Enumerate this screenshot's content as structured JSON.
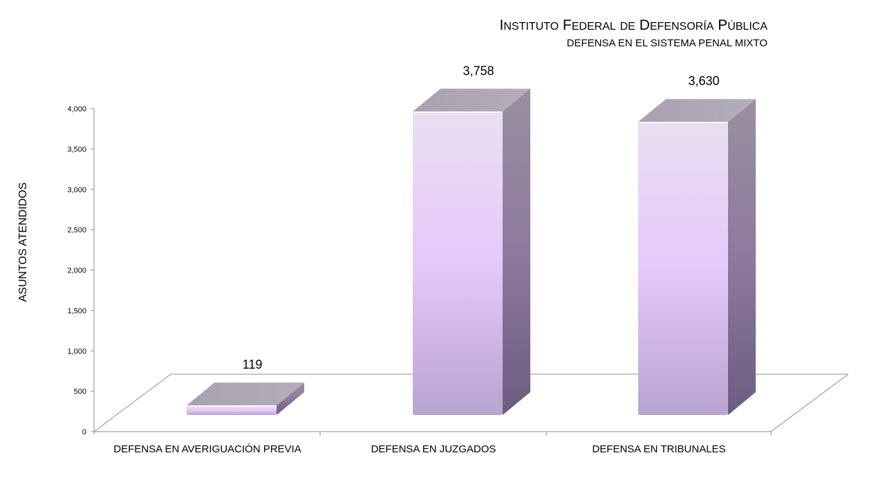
{
  "chart_data": {
    "type": "bar",
    "title": "Instituto Federal de Defensoría Pública",
    "subtitle": "DEFENSA EN EL SISTEMA PENAL MIXTO",
    "ylabel": "ASUNTOS ATENDIDOS",
    "xlabel": "",
    "categories": [
      "DEFENSA EN AVERIGUACIÓN PREVIA",
      "DEFENSA EN JUZGADOS",
      "DEFENSA EN TRIBUNALES"
    ],
    "values": [
      119,
      3758,
      3630
    ],
    "data_labels": [
      "119",
      "3,758",
      "3,630"
    ],
    "ylim": [
      0,
      4000
    ],
    "yticks": [
      0,
      500,
      1000,
      1500,
      2000,
      2500,
      3000,
      3500,
      4000
    ],
    "ytick_labels": [
      "0",
      "500",
      "1,000",
      "1,500",
      "2,000",
      "2,500",
      "3,000",
      "3,500",
      "4,000"
    ],
    "grid": false,
    "legend": "none",
    "style": "3d-column",
    "colors": {
      "front_light": "#e8dff0",
      "front_mid": "#e7c8fb",
      "front_dark": "#b7a4cf",
      "side_top": "#9a8e9f",
      "side_bottom": "#6c5c80",
      "top": "#aba4b4",
      "axis": "#8c8c8c"
    }
  }
}
